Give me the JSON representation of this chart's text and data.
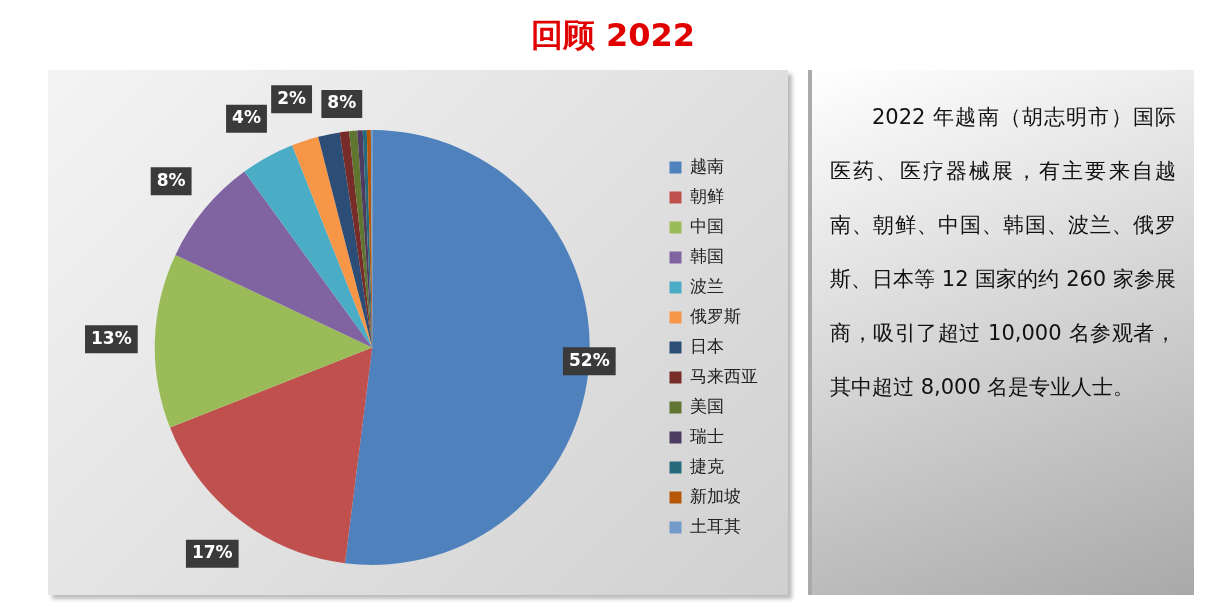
{
  "chart_data": [
    {
      "type": "pie",
      "title": "回顾 2022",
      "categories": [
        "越南",
        "朝鲜",
        "中国",
        "韩国",
        "波兰",
        "俄罗斯",
        "日本",
        "马来西亚",
        "美国",
        "瑞士",
        "捷克",
        "新加坡",
        "土耳其"
      ],
      "values": [
        52,
        17,
        13,
        8,
        4,
        2,
        1.6,
        0.7,
        0.6,
        0.4,
        0.3,
        0.3,
        0.1
      ],
      "colors": [
        "#4f81bd",
        "#c0504d",
        "#9bbb59",
        "#8064a2",
        "#4bacc6",
        "#f79646",
        "#2c4d75",
        "#772c2a",
        "#5f7530",
        "#4d3b62",
        "#276a7c",
        "#b65708",
        "#729aca"
      ],
      "value_labels": [
        "52%",
        "17%",
        "13%",
        "8%",
        "4%",
        "2%",
        null,
        null,
        null,
        null,
        null,
        null,
        null
      ],
      "annotations": [
        "8%"
      ],
      "legend": "right"
    },
    {
      "type": "other",
      "annotations": [
        "2022 年越南（胡志明市）国际医药、医疗器械展，有主要来自越南、朝鲜、中国、韩国、波兰、俄罗斯、日本等 12 国家的约 260 家参展商，吸引了超过 10,000 名参观者，其中超过 8,000 名是专业人士。"
      ]
    }
  ]
}
